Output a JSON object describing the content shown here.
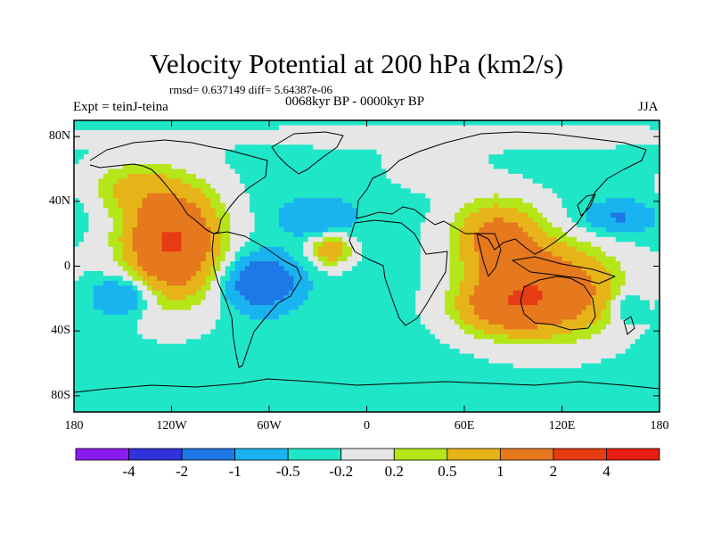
{
  "title": "Velocity Potential at 200 hPa (km2/s)",
  "stats_line": "rmsd= 0.637149 diff= 5.64387e-06",
  "period": "0068kyr BP - 0000kyr BP",
  "experiment": "Expt = teinJ-teina",
  "season": "JJA",
  "map": {
    "projection": "cylindrical-equidistant",
    "lon_range": [
      -180,
      180
    ],
    "lat_range": [
      -90,
      90
    ],
    "lat_ticks": [
      {
        "value": 80,
        "label": "80N"
      },
      {
        "value": 40,
        "label": "40N"
      },
      {
        "value": 0,
        "label": "0"
      },
      {
        "value": -40,
        "label": "40S"
      },
      {
        "value": -80,
        "label": "80S"
      }
    ],
    "lon_ticks": [
      {
        "value": -180,
        "label": "180"
      },
      {
        "value": -120,
        "label": "120W"
      },
      {
        "value": -60,
        "label": "60W"
      },
      {
        "value": 0,
        "label": "0"
      },
      {
        "value": 60,
        "label": "60E"
      },
      {
        "value": 120,
        "label": "120E"
      },
      {
        "value": 180,
        "label": "180"
      }
    ]
  },
  "colorbar": {
    "colors": [
      "#8A1CF0",
      "#3232DC",
      "#1E78E6",
      "#19B4F0",
      "#20E6C8",
      "#E6E6E6",
      "#B4E619",
      "#E6B419",
      "#E6781E",
      "#E63C14",
      "#E61E14"
    ],
    "labels": [
      "-4",
      "-2",
      "-1",
      "-0.5",
      "-0.2",
      "0.2",
      "0.5",
      "1",
      "2",
      "4"
    ]
  },
  "chart_data": {
    "type": "contour-map",
    "variable": "Velocity Potential at 200 hPa",
    "units": "km2/s",
    "levels": [
      -4,
      -2,
      -1,
      -0.5,
      -0.2,
      0.2,
      0.5,
      1,
      2,
      4
    ],
    "background_value": -0.3,
    "anomaly_features": [
      {
        "name": "east-pacific-positive",
        "lon": -120,
        "lat": 15,
        "value": 2.4,
        "lon_radius": 30,
        "lat_radius": 35
      },
      {
        "name": "maritime-continent-positive",
        "lon": 115,
        "lat": -15,
        "value": 1.9,
        "lon_radius": 40,
        "lat_radius": 28
      },
      {
        "name": "south-asia-positive",
        "lon": 80,
        "lat": 18,
        "value": 1.5,
        "lon_radius": 28,
        "lat_radius": 24
      },
      {
        "name": "indian-ocean-positive",
        "lon": 80,
        "lat": -25,
        "value": 1.2,
        "lon_radius": 30,
        "lat_radius": 18
      },
      {
        "name": "tropical-atlantic-positive",
        "lon": -22,
        "lat": 10,
        "value": 1.2,
        "lon_radius": 13,
        "lat_radius": 10
      },
      {
        "name": "north-pacific-positive",
        "lon": -150,
        "lat": 50,
        "value": 0.6,
        "lon_radius": 25,
        "lat_radius": 15
      },
      {
        "name": "siberia-positive",
        "lon": 40,
        "lat": 60,
        "value": 0.4,
        "lon_radius": 25,
        "lat_radius": 12
      },
      {
        "name": "arctic-positive",
        "lon": 60,
        "lat": 80,
        "value": 0.2,
        "lon_radius": 180,
        "lat_radius": 10
      },
      {
        "name": "south-america-negative",
        "lon": -65,
        "lat": -10,
        "value": -1.5,
        "lon_radius": 22,
        "lat_radius": 16
      },
      {
        "name": "south-pacific-negative",
        "lon": -150,
        "lat": -18,
        "value": -1.0,
        "lon_radius": 18,
        "lat_radius": 12
      },
      {
        "name": "north-atlantic-negative",
        "lon": -30,
        "lat": 30,
        "value": -0.7,
        "lon_radius": 22,
        "lat_radius": 12
      },
      {
        "name": "northwest-pacific-negative",
        "lon": 155,
        "lat": 30,
        "value": -0.8,
        "lon_radius": 22,
        "lat_radius": 10
      },
      {
        "name": "west-pacific-negative",
        "lon": 160,
        "lat": -25,
        "value": -0.6,
        "lon_radius": 10,
        "lat_radius": 10
      }
    ]
  }
}
